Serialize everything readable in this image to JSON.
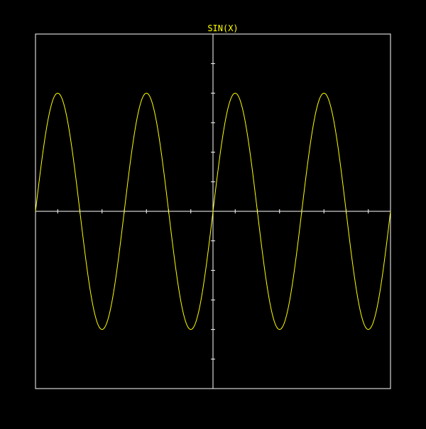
{
  "chart_data": {
    "type": "line",
    "title": "SIN(X)",
    "xlabel": "",
    "ylabel": "",
    "function": "sin",
    "xlim": [
      -12.5664,
      12.5664
    ],
    "ylim": [
      -1.5,
      1.5
    ],
    "x_tick_step": 1.5708,
    "y_tick_step": 0.25,
    "grid": false,
    "legend": "none",
    "series": [
      {
        "x": [
          -12.5664,
          -11.781,
          -10.9956,
          -10.2102,
          -9.4248,
          -8.6394,
          -7.854,
          -7.0686,
          -6.2832,
          -5.4978,
          -4.7124,
          -3.927,
          -3.1416,
          -2.3562,
          -1.5708,
          -0.7854,
          0,
          0.7854,
          1.5708,
          2.3562,
          3.1416,
          3.927,
          4.7124,
          5.4978,
          6.2832,
          7.0686,
          7.854,
          8.6394,
          9.4248,
          10.2102,
          10.9956,
          11.781,
          12.5664
        ],
        "values": [
          0,
          0.7071,
          1,
          0.7071,
          0,
          -0.7071,
          -1,
          -0.7071,
          0,
          0.7071,
          1,
          0.7071,
          0,
          -0.7071,
          -1,
          -0.7071,
          0,
          0.7071,
          1,
          0.7071,
          0,
          -0.7071,
          -1,
          -0.7071,
          0,
          0.7071,
          1,
          0.7071,
          0,
          -0.7071,
          -1,
          -0.7071,
          0
        ]
      }
    ]
  },
  "colors": {
    "background": "#000000",
    "frame": "#ffffff",
    "axes": "#ffffff",
    "curve": "#ffff00",
    "title": "#ffff00"
  }
}
